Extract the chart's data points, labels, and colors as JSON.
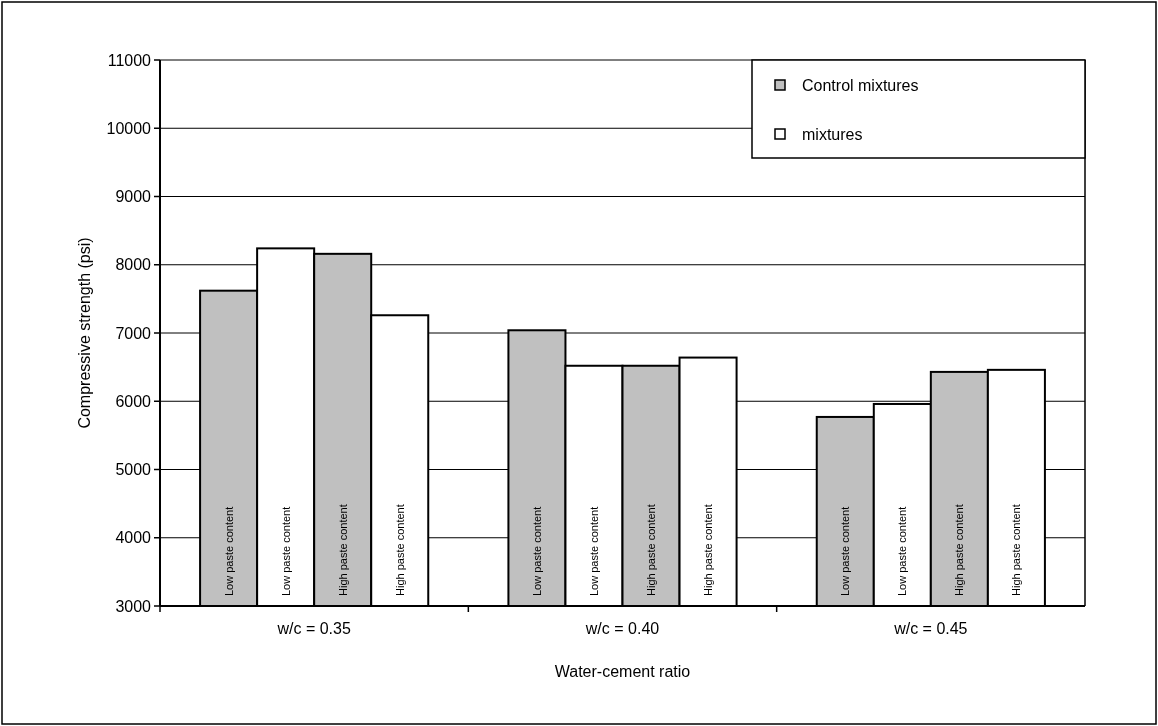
{
  "chart_data": {
    "type": "bar",
    "xlabel": "Water-cement ratio",
    "ylabel": "Compressive strength (psi)",
    "categories": [
      "w/c = 0.35",
      "w/c = 0.40",
      "w/c = 0.45"
    ],
    "series": [
      {
        "name": "Control mixtures",
        "color": "#c0c0c0",
        "values": [
          7620,
          7040,
          5770
        ],
        "value_labels": [
          "Low paste content",
          "Low paste content",
          "Low paste content"
        ]
      },
      {
        "name": "mixtures",
        "color": "#ffffff",
        "values": [
          8240,
          6520,
          5960
        ],
        "value_labels": [
          "Low paste content",
          "Low paste content",
          "Low paste content"
        ]
      },
      {
        "color": "#c0c0c0",
        "values": [
          8160,
          6520,
          6430
        ],
        "value_labels": [
          "High paste content",
          "High paste content",
          "High paste content"
        ]
      },
      {
        "color": "#ffffff",
        "values": [
          7260,
          6640,
          6460
        ],
        "value_labels": [
          "High paste content",
          "High paste content",
          "High paste content"
        ]
      }
    ],
    "ylim": [
      3000,
      11000
    ],
    "yticks": [
      3000,
      4000,
      5000,
      6000,
      7000,
      8000,
      9000,
      10000,
      11000
    ],
    "grid": "y",
    "legend": "top right"
  }
}
